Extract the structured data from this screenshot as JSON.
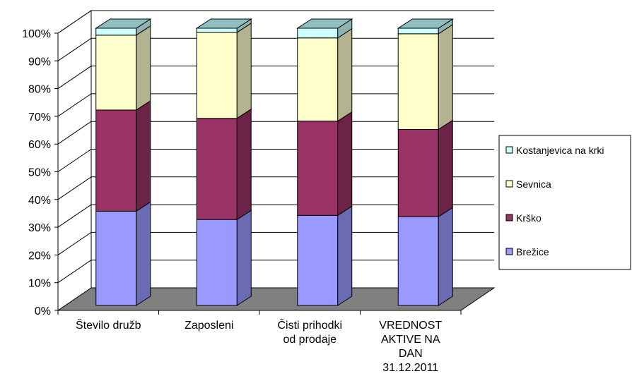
{
  "chart_data": {
    "type": "bar",
    "stacked": true,
    "normalized_percent": true,
    "three_d": true,
    "categories": [
      [
        "Število družb"
      ],
      [
        "Zaposleni"
      ],
      [
        "Čisti prihodki",
        "od prodaje"
      ],
      [
        "VREDNOST",
        "AKTIVE NA",
        "DAN",
        "31.12.2011"
      ]
    ],
    "y_ticks": [
      "0%",
      "10%",
      "20%",
      "30%",
      "40%",
      "50%",
      "60%",
      "70%",
      "80%",
      "90%",
      "100%"
    ],
    "ylim": [
      0,
      100
    ],
    "grid": true,
    "legend_position": "right",
    "series": [
      {
        "name": "Brežice",
        "values": [
          34,
          31,
          32.5,
          32
        ],
        "color": "#9999ff",
        "side_color": "#6b6bb3"
      },
      {
        "name": "Krško",
        "values": [
          36.5,
          36.5,
          34,
          31.5
        ],
        "color": "#993366",
        "side_color": "#6b2447"
      },
      {
        "name": "Sevnica",
        "values": [
          27,
          31,
          30,
          34.5
        ],
        "color": "#ffffcc",
        "side_color": "#b3b38f"
      },
      {
        "name": "Kostanjevica na krki",
        "values": [
          2.5,
          1.5,
          3.5,
          2
        ],
        "color": "#ccffff",
        "side_color": "#8fb3b3"
      }
    ],
    "legend_order": [
      "Kostanjevica na krki",
      "Sevnica",
      "Krško",
      "Brežice"
    ]
  }
}
